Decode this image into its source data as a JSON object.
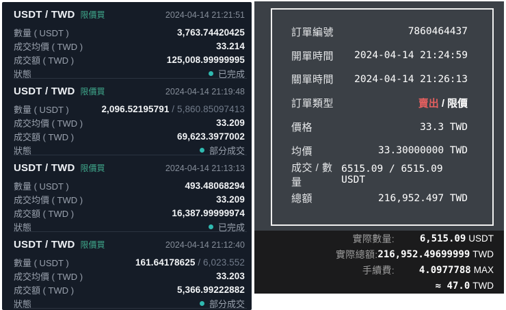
{
  "colors": {
    "buy_tag_green": "#3fa98c",
    "sell_red": "#e35f5f",
    "status_dot_teal": "#2fb9b0",
    "left_panel_bg": "#151c27",
    "right_panel_bg": "#3b4046",
    "summary_bg": "#1b1b1c"
  },
  "orders": [
    {
      "pair": "USDT / TWD",
      "tag": "限價買",
      "time": "2024-04-14 21:21:51",
      "amount_label": "數量 ( USDT )",
      "amount": "3,763.74420425",
      "avg_label": "成交均價 ( TWD )",
      "avg": "33.214",
      "total_label": "成交額 ( TWD )",
      "total": "125,008.99999995",
      "status_label": "狀態",
      "status": "已完成"
    },
    {
      "pair": "USDT / TWD",
      "tag": "限價買",
      "time": "2024-04-14 21:19:48",
      "amount_label": "數量 ( USDT )",
      "amount": "2,096.52195791",
      "amount_rest": " / 5,860.85097413",
      "avg_label": "成交均價 ( TWD )",
      "avg": "33.209",
      "total_label": "成交額 ( TWD )",
      "total": "69,623.3977002",
      "status_label": "狀態",
      "status": "部分成交"
    },
    {
      "pair": "USDT / TWD",
      "tag": "限價買",
      "time": "2024-04-14 21:13:13",
      "amount_label": "數量 ( USDT )",
      "amount": "493.48068294",
      "avg_label": "成交均價 ( TWD )",
      "avg": "33.209",
      "total_label": "成交額 ( TWD )",
      "total": "16,387.99999974",
      "status_label": "狀態",
      "status": "已完成"
    },
    {
      "pair": "USDT / TWD",
      "tag": "限價買",
      "time": "2024-04-14 21:12:40",
      "amount_label": "數量 ( USDT )",
      "amount": "161.64178625",
      "amount_rest": " / 6,023.552",
      "avg_label": "成交均價 ( TWD )",
      "avg": "33.203",
      "total_label": "成交額 ( TWD )",
      "total": "5,366.99222882",
      "status_label": "狀態",
      "status": "部分成交"
    }
  ],
  "detail": {
    "order_id_label": "訂單編號",
    "order_id": "7860464437",
    "open_time_label": "開單時間",
    "open_time": "2024-04-14 21:24:59",
    "close_time_label": "關單時間",
    "close_time": "2024-04-14 21:26:13",
    "type_label": "訂單類型",
    "type_side": "賣出",
    "type_sep": "/",
    "type_name": "限價",
    "price_label": "價格",
    "price": "33.3 TWD",
    "avg_label": "均價",
    "avg": "33.30000000 TWD",
    "filled_label": "成交 / 數量",
    "filled": "6515.09 / 6515.09 USDT",
    "total_label": "總額",
    "total": "216,952.497 TWD"
  },
  "summary": {
    "actual_amount_label": "實際數量:",
    "actual_amount": "6,515.09",
    "actual_amount_unit": "USDT",
    "actual_total_label": "實際總額:",
    "actual_total": "216,952.49699999",
    "actual_total_unit": "TWD",
    "fee_label": "手續費:",
    "fee": "4.0977788",
    "fee_unit": "MAX",
    "fee_approx": "≈ 47.0",
    "fee_approx_unit": "TWD"
  }
}
